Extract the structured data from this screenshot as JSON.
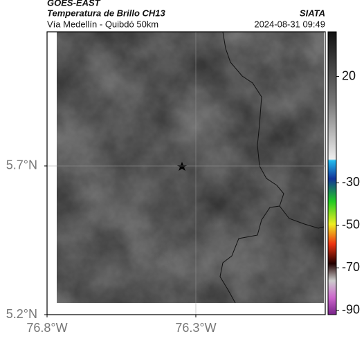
{
  "header": {
    "satellite": "GOES-EAST",
    "product": "Temperatura de Brillo CH13",
    "region": "Vía Medellín - Quibdó 50km",
    "source": "SIATA",
    "datetime": "2024-08-31 09:49"
  },
  "map": {
    "xlim": [
      -76.8,
      -75.865
    ],
    "ylim": [
      5.2,
      6.151
    ],
    "xticks": [
      {
        "value": -76.8,
        "label": "76.8°W"
      },
      {
        "value": -76.3,
        "label": "76.3°W"
      }
    ],
    "yticks": [
      {
        "value": 5.2,
        "label": "5.2°N"
      },
      {
        "value": 5.7,
        "label": "5.7°N"
      }
    ]
  },
  "colorbar": {
    "lim": [
      41,
      -92
    ],
    "ticks": [
      20,
      -30,
      -50,
      -70,
      -90
    ]
  }
}
